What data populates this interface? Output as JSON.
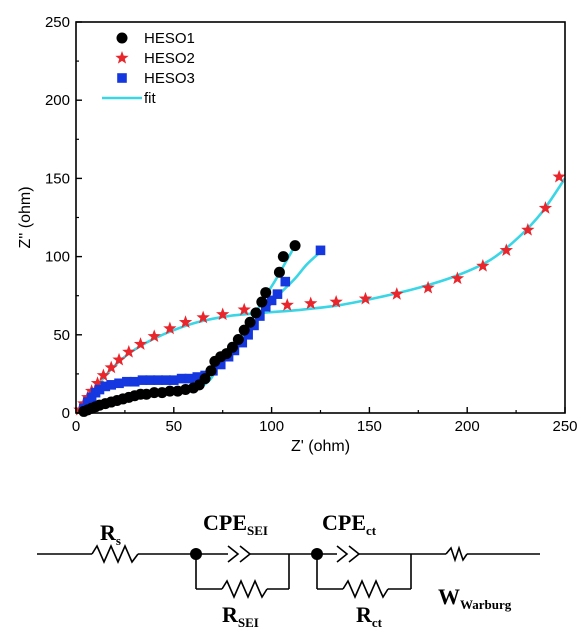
{
  "chart_data": {
    "type": "scatter",
    "title": "",
    "xlabel": "Z' (ohm)",
    "ylabel": "Z'' (ohm)",
    "xlim": [
      0,
      250
    ],
    "ylim": [
      0,
      250
    ],
    "xticks": [
      0,
      50,
      100,
      150,
      200,
      250
    ],
    "yticks": [
      0,
      50,
      100,
      150,
      200,
      250
    ],
    "grid": false,
    "legend_position": "top-left",
    "series": [
      {
        "name": "HESO1",
        "marker": "circle",
        "color": "#000000",
        "points": [
          [
            4,
            1
          ],
          [
            6,
            2
          ],
          [
            8,
            3
          ],
          [
            10,
            4
          ],
          [
            12,
            5
          ],
          [
            15,
            6
          ],
          [
            18,
            7
          ],
          [
            21,
            8
          ],
          [
            24,
            9
          ],
          [
            27,
            10
          ],
          [
            30,
            11
          ],
          [
            33,
            12
          ],
          [
            36,
            12
          ],
          [
            40,
            13
          ],
          [
            44,
            13
          ],
          [
            48,
            14
          ],
          [
            52,
            14
          ],
          [
            56,
            15
          ],
          [
            60,
            16
          ],
          [
            63,
            18
          ],
          [
            66,
            22
          ],
          [
            69,
            27
          ],
          [
            71,
            33
          ],
          [
            74,
            36
          ],
          [
            77,
            38
          ],
          [
            80,
            42
          ],
          [
            83,
            47
          ],
          [
            86,
            53
          ],
          [
            89,
            58
          ],
          [
            92,
            64
          ],
          [
            95,
            71
          ],
          [
            97,
            77
          ],
          [
            104,
            90
          ],
          [
            106,
            100
          ],
          [
            112,
            107
          ]
        ]
      },
      {
        "name": "HESO2",
        "marker": "star",
        "color": "#e8262c",
        "points": [
          [
            2,
            2
          ],
          [
            4,
            6
          ],
          [
            6,
            10
          ],
          [
            8,
            14
          ],
          [
            11,
            19
          ],
          [
            14,
            24
          ],
          [
            18,
            29
          ],
          [
            22,
            34
          ],
          [
            27,
            39
          ],
          [
            33,
            44
          ],
          [
            40,
            49
          ],
          [
            48,
            54
          ],
          [
            56,
            58
          ],
          [
            65,
            61
          ],
          [
            75,
            63
          ],
          [
            86,
            66
          ],
          [
            97,
            68
          ],
          [
            108,
            69
          ],
          [
            120,
            70
          ],
          [
            133,
            71
          ],
          [
            148,
            73
          ],
          [
            164,
            76
          ],
          [
            180,
            80
          ],
          [
            195,
            86
          ],
          [
            208,
            94
          ],
          [
            220,
            104
          ],
          [
            231,
            117
          ],
          [
            240,
            131
          ],
          [
            247,
            151
          ]
        ]
      },
      {
        "name": "HESO3",
        "marker": "square",
        "color": "#1437e0",
        "points": [
          [
            4,
            3
          ],
          [
            6,
            7
          ],
          [
            8,
            10
          ],
          [
            10,
            13
          ],
          [
            12,
            15
          ],
          [
            15,
            17
          ],
          [
            18,
            18
          ],
          [
            22,
            19
          ],
          [
            26,
            20
          ],
          [
            30,
            20
          ],
          [
            34,
            21
          ],
          [
            38,
            21
          ],
          [
            42,
            21
          ],
          [
            46,
            21
          ],
          [
            50,
            21
          ],
          [
            54,
            22
          ],
          [
            58,
            22
          ],
          [
            62,
            23
          ],
          [
            66,
            24
          ],
          [
            70,
            27
          ],
          [
            74,
            31
          ],
          [
            78,
            36
          ],
          [
            81,
            40
          ],
          [
            85,
            45
          ],
          [
            88,
            50
          ],
          [
            91,
            56
          ],
          [
            94,
            62
          ],
          [
            97,
            68
          ],
          [
            100,
            72
          ],
          [
            103,
            76
          ],
          [
            107,
            84
          ],
          [
            125,
            104
          ]
        ]
      },
      {
        "name": "fit",
        "marker": "line",
        "color": "#3ad6e6"
      }
    ],
    "fit_curves": [
      {
        "for": "HESO1",
        "points": [
          [
            3,
            0
          ],
          [
            6,
            2
          ],
          [
            10,
            4
          ],
          [
            15,
            6
          ],
          [
            20,
            7.5
          ],
          [
            30,
            10.5
          ],
          [
            40,
            12.5
          ],
          [
            50,
            14
          ],
          [
            58,
            15
          ],
          [
            64,
            17
          ],
          [
            69,
            22
          ],
          [
            73,
            31
          ],
          [
            78,
            38
          ],
          [
            84,
            48
          ],
          [
            90,
            60
          ],
          [
            96,
            73
          ],
          [
            102,
            85
          ],
          [
            107,
            96
          ],
          [
            112,
            107
          ]
        ]
      },
      {
        "for": "HESO2",
        "points": [
          [
            3,
            0
          ],
          [
            5,
            6
          ],
          [
            8,
            12
          ],
          [
            12,
            19
          ],
          [
            18,
            28
          ],
          [
            26,
            37
          ],
          [
            36,
            45
          ],
          [
            48,
            52
          ],
          [
            62,
            58
          ],
          [
            78,
            62
          ],
          [
            95,
            64
          ],
          [
            115,
            66
          ],
          [
            135,
            69
          ],
          [
            155,
            74
          ],
          [
            175,
            80
          ],
          [
            195,
            88
          ],
          [
            212,
            98
          ],
          [
            226,
            112
          ],
          [
            238,
            128
          ],
          [
            250,
            150
          ]
        ]
      },
      {
        "for": "HESO3",
        "points": [
          [
            3,
            0
          ],
          [
            5,
            6
          ],
          [
            8,
            10
          ],
          [
            12,
            14
          ],
          [
            18,
            17
          ],
          [
            25,
            19
          ],
          [
            35,
            20
          ],
          [
            45,
            21
          ],
          [
            55,
            21
          ],
          [
            62,
            22.5
          ],
          [
            68,
            25
          ],
          [
            74,
            31
          ],
          [
            80,
            39
          ],
          [
            86,
            48
          ],
          [
            92,
            58
          ],
          [
            98,
            68
          ],
          [
            104,
            76
          ],
          [
            112,
            86
          ],
          [
            118,
            95
          ],
          [
            125,
            103
          ]
        ]
      }
    ]
  },
  "circuit": {
    "rs": {
      "main": "R",
      "sub": "s"
    },
    "cpe_sei": {
      "main": "CPE",
      "sub": "SEI"
    },
    "cpe_ct": {
      "main": "CPE",
      "sub": "ct"
    },
    "r_sei": {
      "main": "R",
      "sub": "SEI"
    },
    "r_ct": {
      "main": "R",
      "sub": "ct"
    },
    "warburg": {
      "main": "W",
      "sub": "Warburg"
    }
  }
}
